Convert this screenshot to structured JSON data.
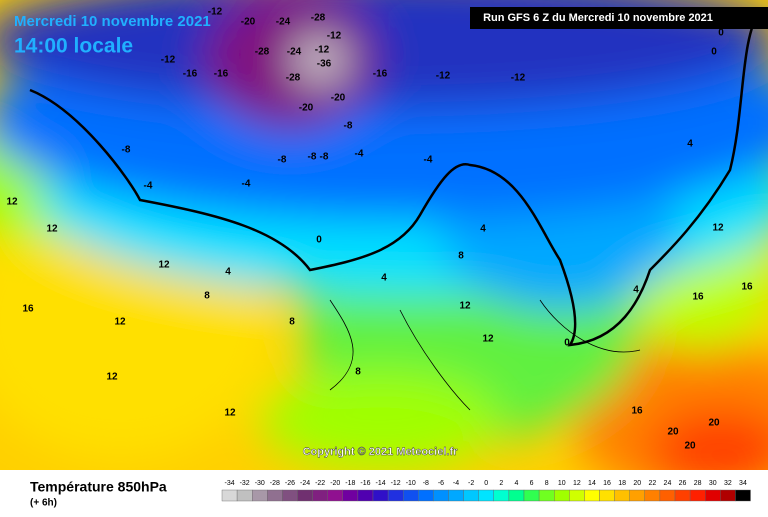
{
  "header": {
    "date": "Mercredi 10 novembre 2021",
    "time": "14:00 locale",
    "run": "Run GFS 6 Z du Mercredi 10 novembre 2021"
  },
  "footer": {
    "title": "Température 850hPa",
    "lead": "(+ 6h)",
    "copyright": "Copyright © 2021 Meteociel.fr"
  },
  "map_labels": [
    -12,
    -20,
    -24,
    -28,
    -12,
    -28,
    -24,
    -12,
    -36,
    -28,
    -16,
    -20,
    -16,
    -12,
    -12,
    -16,
    -20,
    -12,
    -8,
    -8,
    -8,
    -8,
    -4,
    -4,
    -4,
    -8,
    -4,
    0,
    0,
    0,
    4,
    4,
    4,
    8,
    8,
    8,
    12,
    12,
    12,
    12,
    16,
    16,
    16,
    12,
    4,
    8,
    12,
    12,
    16,
    20,
    20,
    20,
    0,
    4,
    12,
    12
  ],
  "scale": {
    "ticks": [
      -34,
      -32,
      -30,
      -28,
      -26,
      -24,
      -22,
      -20,
      -18,
      -16,
      -14,
      -12,
      -10,
      -8,
      -6,
      -4,
      -2,
      0,
      2,
      4,
      6,
      8,
      10,
      12,
      14,
      16,
      18,
      20,
      22,
      24,
      26,
      28,
      30,
      32,
      34
    ],
    "colors": [
      "#d8d8d8",
      "#c0c0c0",
      "#a898a8",
      "#907090",
      "#805080",
      "#703070",
      "#802080",
      "#901090",
      "#7000a0",
      "#5000b0",
      "#3010c8",
      "#2030e0",
      "#1050f0",
      "#0070ff",
      "#0090ff",
      "#00a8ff",
      "#00c8ff",
      "#00e4ff",
      "#00ffd0",
      "#00ff90",
      "#30ff50",
      "#70ff20",
      "#a0ff00",
      "#d0ff00",
      "#ffff00",
      "#ffe000",
      "#ffc000",
      "#ffa000",
      "#ff8000",
      "#ff6000",
      "#ff4000",
      "#ff2000",
      "#e00000",
      "#b00000",
      "#000000"
    ]
  }
}
